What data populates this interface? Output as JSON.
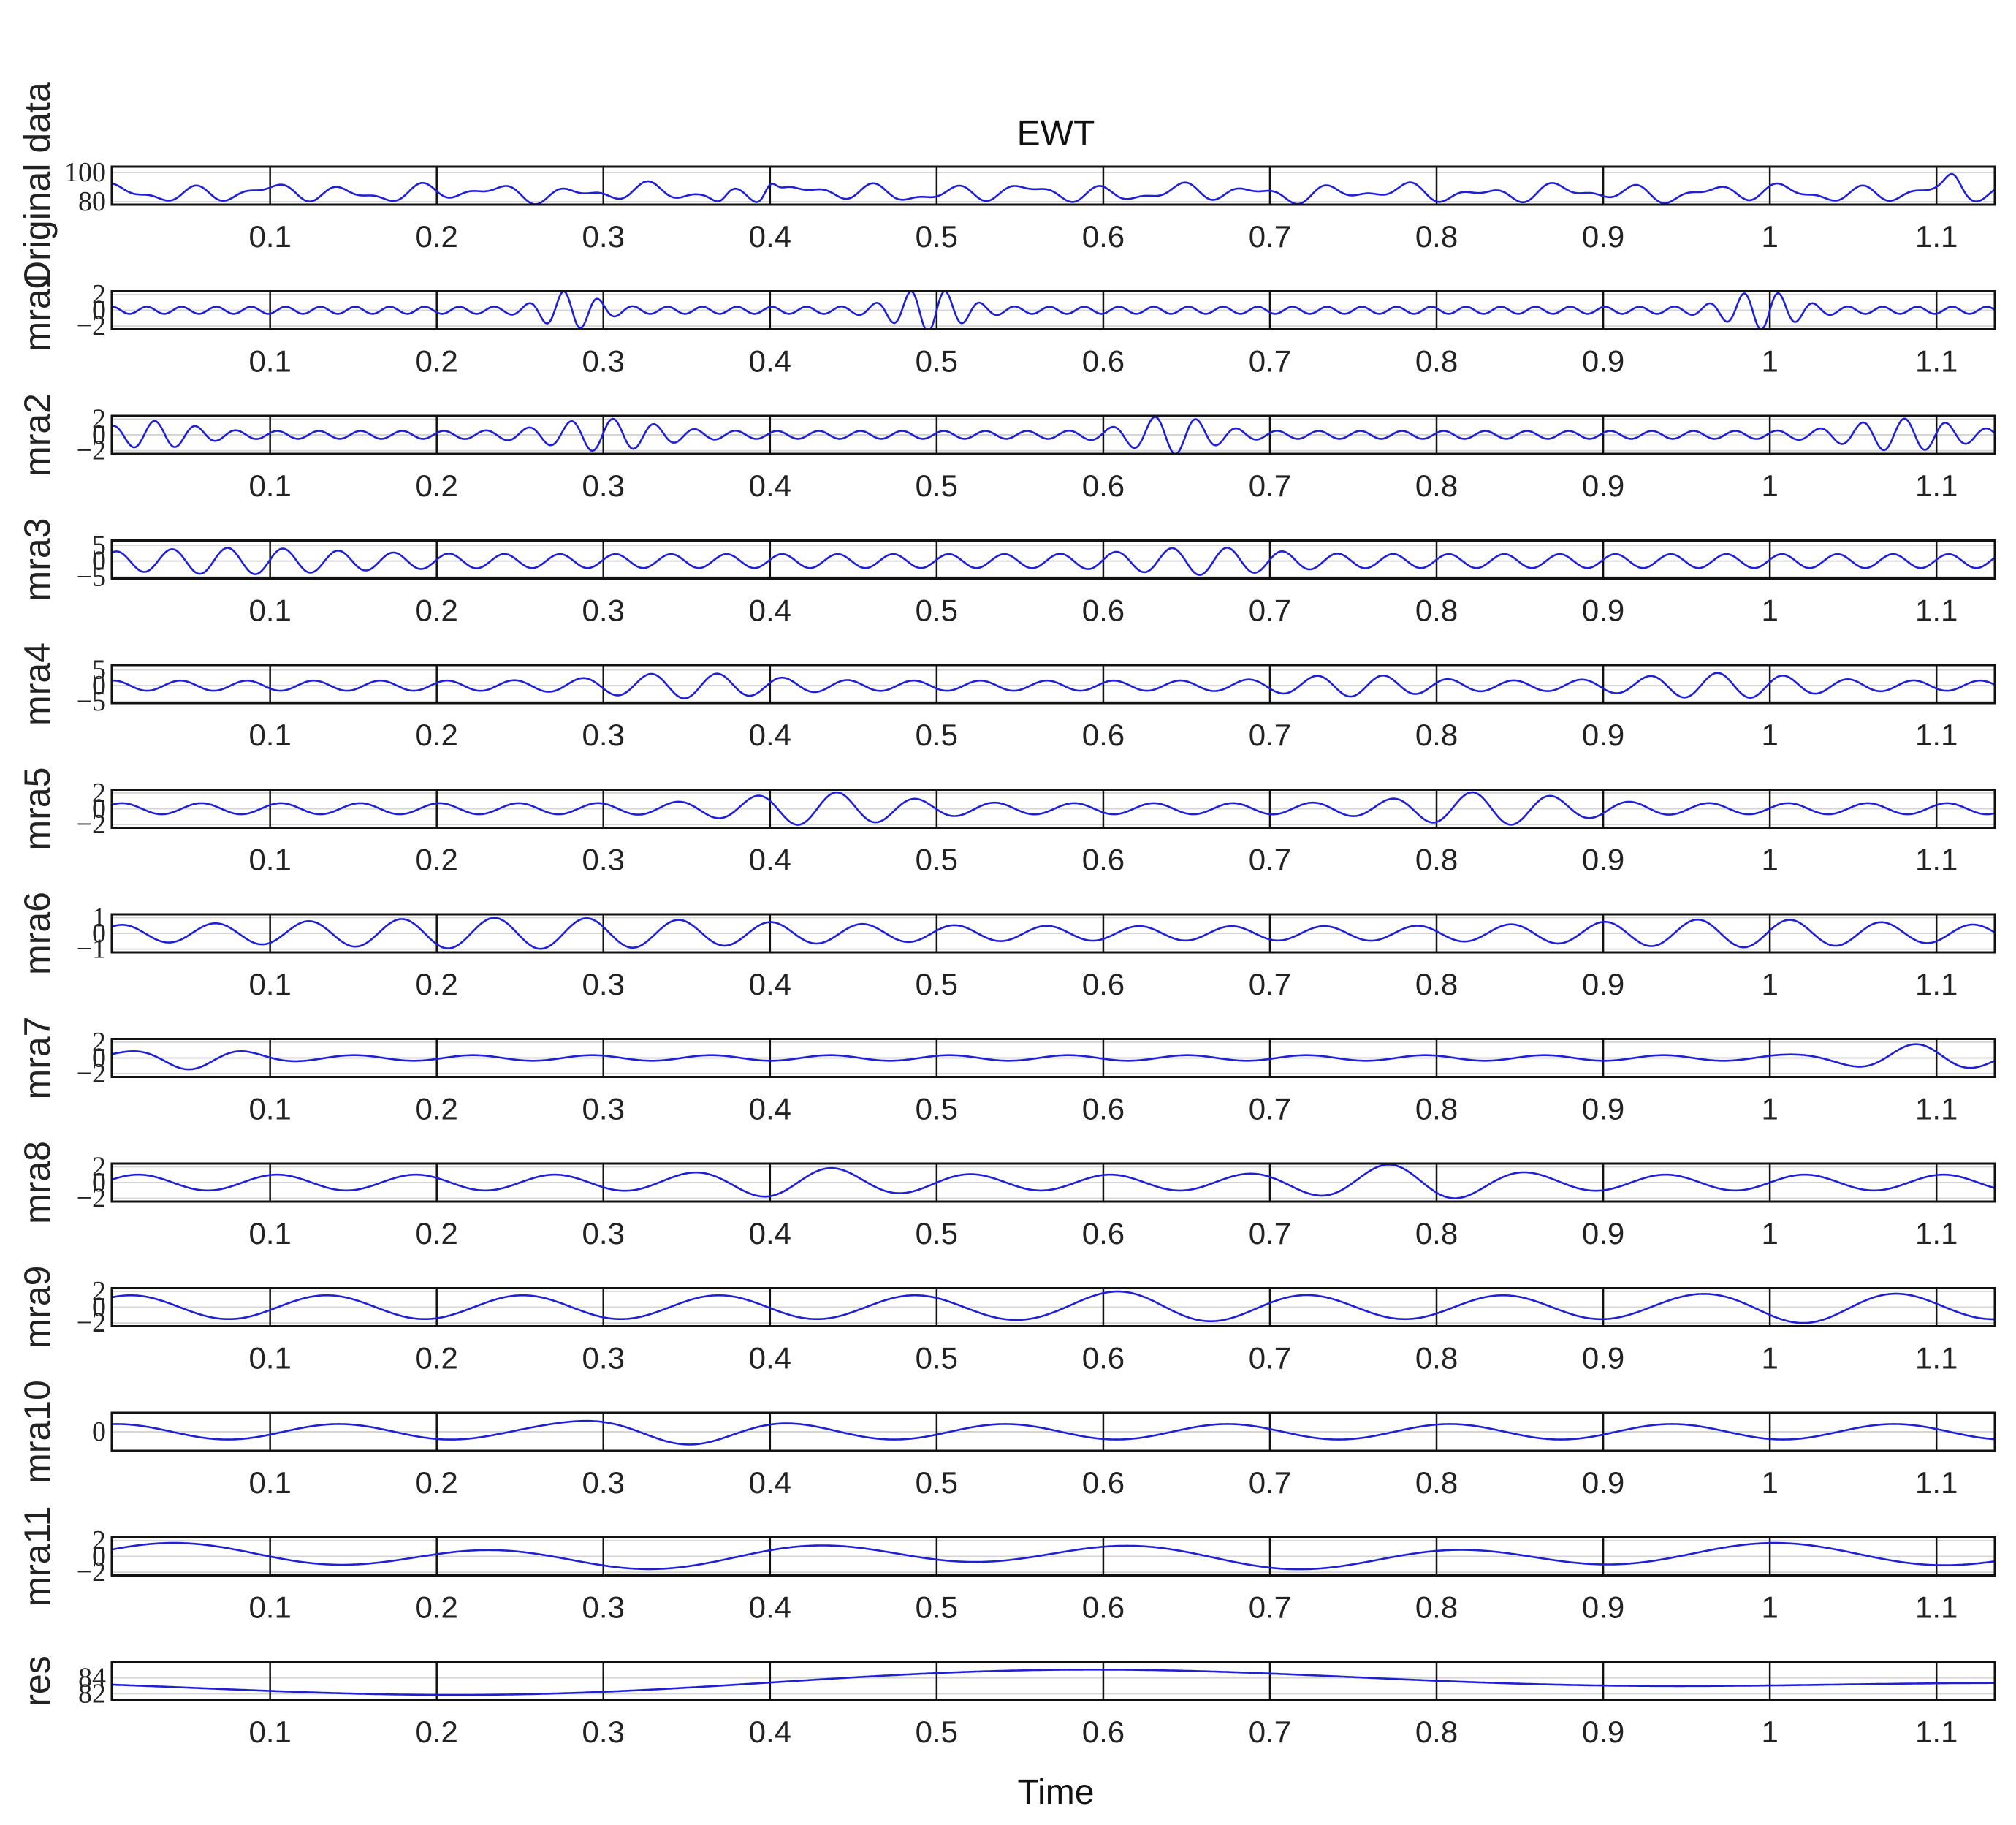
{
  "chart_data": {
    "type": "line",
    "title": "EWT",
    "xlabel": "Time",
    "xlim": [
      0.005,
      1.135
    ],
    "x_ticks": [
      0.1,
      0.2,
      0.3,
      0.4,
      0.5,
      0.6,
      0.7,
      0.8,
      0.9,
      1,
      1.1
    ],
    "x_tick_labels": [
      "0.1",
      "0.2",
      "0.3",
      "0.4",
      "0.5",
      "0.6",
      "0.7",
      "0.8",
      "0.9",
      "1",
      "1.1"
    ],
    "grid": true,
    "line_color": "#1f1fd6",
    "panels": [
      {
        "ylabel": "Original data",
        "ylim": [
          78,
          104
        ],
        "yticks": [
          80,
          100
        ],
        "ytick_labels": [
          "80",
          "100"
        ],
        "signal": {
          "base": 86,
          "components": [
            [
              4.0,
              22,
              0.3
            ],
            [
              2.5,
              37,
              1.1
            ],
            [
              1.5,
              9,
              2.0
            ]
          ],
          "features": [
            {
              "x": 0.4,
              "dy": 10,
              "w": 0.005
            },
            {
              "x": 0.37,
              "dy": -6,
              "w": 0.006
            },
            {
              "x": 1.11,
              "dy": 8,
              "w": 0.006
            }
          ]
        }
      },
      {
        "ylabel": "mra1",
        "ylim": [
          -2.4,
          2.4
        ],
        "yticks": [
          -2,
          0,
          2
        ],
        "ytick_labels": [
          "−2",
          "0",
          "2"
        ],
        "signal": {
          "base": 0,
          "components": [
            [
              0.45,
              48,
              0.0
            ]
          ],
          "bursts": [
            {
              "x": 0.28,
              "amp": 2.0,
              "f": 48,
              "w": 0.02
            },
            {
              "x": 0.495,
              "amp": 2.3,
              "f": 48,
              "w": 0.025
            },
            {
              "x": 0.995,
              "amp": 2.0,
              "f": 48,
              "w": 0.025
            }
          ]
        }
      },
      {
        "ylabel": "mra2",
        "ylim": [
          -2.4,
          2.4
        ],
        "yticks": [
          -2,
          0,
          2
        ],
        "ytick_labels": [
          "−2",
          "0",
          "2"
        ],
        "signal": {
          "base": 0,
          "components": [
            [
              0.5,
              40,
              0.5
            ]
          ],
          "bursts": [
            {
              "x": 0.03,
              "amp": 1.3,
              "f": 40,
              "w": 0.03
            },
            {
              "x": 0.3,
              "amp": 1.6,
              "f": 40,
              "w": 0.04
            },
            {
              "x": 0.64,
              "amp": 2.0,
              "f": 40,
              "w": 0.03
            },
            {
              "x": 1.08,
              "amp": 1.6,
              "f": 40,
              "w": 0.04
            }
          ]
        }
      },
      {
        "ylabel": "mra3",
        "ylim": [
          -5.5,
          6.5
        ],
        "yticks": [
          -5,
          0,
          5
        ],
        "ytick_labels": [
          "−5",
          "0",
          "5"
        ],
        "signal": {
          "base": 0,
          "components": [
            [
              2.2,
              30,
              0.2
            ]
          ],
          "bursts": [
            {
              "x": 0.08,
              "amp": 2.0,
              "f": 30,
              "w": 0.08
            },
            {
              "x": 0.66,
              "amp": 2.2,
              "f": 30,
              "w": 0.05
            }
          ]
        }
      },
      {
        "ylabel": "mra4",
        "ylim": [
          -5.5,
          6.5
        ],
        "yticks": [
          -5,
          0,
          5
        ],
        "ytick_labels": [
          "−5",
          "0",
          "5"
        ],
        "signal": {
          "base": 0,
          "components": [
            [
              1.6,
              25,
              0.6
            ]
          ],
          "bursts": [
            {
              "x": 0.35,
              "amp": 2.6,
              "f": 25,
              "w": 0.06
            },
            {
              "x": 0.75,
              "amp": 2.0,
              "f": 25,
              "w": 0.05
            },
            {
              "x": 0.97,
              "amp": 2.6,
              "f": 25,
              "w": 0.06
            }
          ]
        }
      },
      {
        "ylabel": "mra5",
        "ylim": [
          -2.4,
          2.4
        ],
        "yticks": [
          -2,
          0,
          2
        ],
        "ytick_labels": [
          "−2",
          "0",
          "2"
        ],
        "signal": {
          "base": 0,
          "components": [
            [
              0.7,
              21,
              0.1
            ]
          ],
          "bursts": [
            {
              "x": 0.43,
              "amp": 1.4,
              "f": 21,
              "w": 0.06
            },
            {
              "x": 0.83,
              "amp": 1.4,
              "f": 21,
              "w": 0.06
            }
          ]
        }
      },
      {
        "ylabel": "mra6",
        "ylim": [
          -1.2,
          1.2
        ],
        "yticks": [
          -1,
          0,
          1
        ],
        "ytick_labels": [
          "−1",
          "0",
          "1"
        ],
        "signal": {
          "base": 0,
          "components": [
            [
              0.45,
              18,
              0.4
            ]
          ],
          "bursts": [
            {
              "x": 0.25,
              "amp": 0.55,
              "f": 18,
              "w": 0.18
            },
            {
              "x": 0.98,
              "amp": 0.45,
              "f": 18,
              "w": 0.12
            }
          ]
        }
      },
      {
        "ylabel": "mra7",
        "ylim": [
          -2.4,
          2.4
        ],
        "yticks": [
          -2,
          0,
          2
        ],
        "ytick_labels": [
          "−2",
          "0",
          "2"
        ],
        "signal": {
          "base": 0,
          "components": [
            [
              0.35,
              14,
              0.9
            ]
          ],
          "bursts": [
            {
              "x": 0.05,
              "amp": 1.2,
              "f": 14,
              "w": 0.04
            },
            {
              "x": 1.09,
              "amp": 1.5,
              "f": 14,
              "w": 0.05
            }
          ]
        }
      },
      {
        "ylabel": "mra8",
        "ylim": [
          -2.4,
          2.4
        ],
        "yticks": [
          -2,
          0,
          2
        ],
        "ytick_labels": [
          "−2",
          "0",
          "2"
        ],
        "signal": {
          "base": 0,
          "components": [
            [
              1.0,
              12,
              0.0
            ]
          ],
          "bursts": [
            {
              "x": 0.78,
              "amp": 1.3,
              "f": 12,
              "w": 0.06
            },
            {
              "x": 0.42,
              "amp": 0.9,
              "f": 12,
              "w": 0.06
            }
          ]
        }
      },
      {
        "ylabel": "mra9",
        "ylim": [
          -2.4,
          2.4
        ],
        "yticks": [
          -2,
          0,
          2
        ],
        "ytick_labels": [
          "−2",
          "0",
          "2"
        ],
        "signal": {
          "base": 0,
          "components": [
            [
              1.5,
              8.5,
              0.7
            ]
          ],
          "bursts": [
            {
              "x": 0.62,
              "amp": 0.6,
              "f": 8.5,
              "w": 0.06
            },
            {
              "x": 1.02,
              "amp": 0.6,
              "f": 8.5,
              "w": 0.06
            }
          ]
        }
      },
      {
        "ylabel": "mra10",
        "ylim": [
          -3.2,
          3.2
        ],
        "yticks": [
          0
        ],
        "ytick_labels": [
          "0"
        ],
        "signal": {
          "base": 0,
          "components": [
            [
              1.3,
              7.5,
              1.2
            ]
          ],
          "bursts": [
            {
              "x": 0.33,
              "amp": 1.5,
              "f": 7.5,
              "w": 0.06
            }
          ]
        }
      },
      {
        "ylabel": "mra11",
        "ylim": [
          -2.4,
          2.4
        ],
        "yticks": [
          -2,
          0,
          2
        ],
        "ytick_labels": [
          "−2",
          "0",
          "2"
        ],
        "signal": {
          "base": 0,
          "components": [
            [
              1.2,
              5.2,
              0.2
            ],
            [
              0.5,
              2.1,
              1.0
            ]
          ]
        }
      },
      {
        "ylabel": "res",
        "ylim": [
          81.2,
          86.0
        ],
        "yticks": [
          82,
          84
        ],
        "ytick_labels": [
          "82",
          "84"
        ],
        "signal": {
          "base": 83.4,
          "components": [
            [
              0.8,
              1.6,
              2.2
            ],
            [
              1.0,
              0.85,
              4.2
            ]
          ]
        }
      }
    ]
  }
}
